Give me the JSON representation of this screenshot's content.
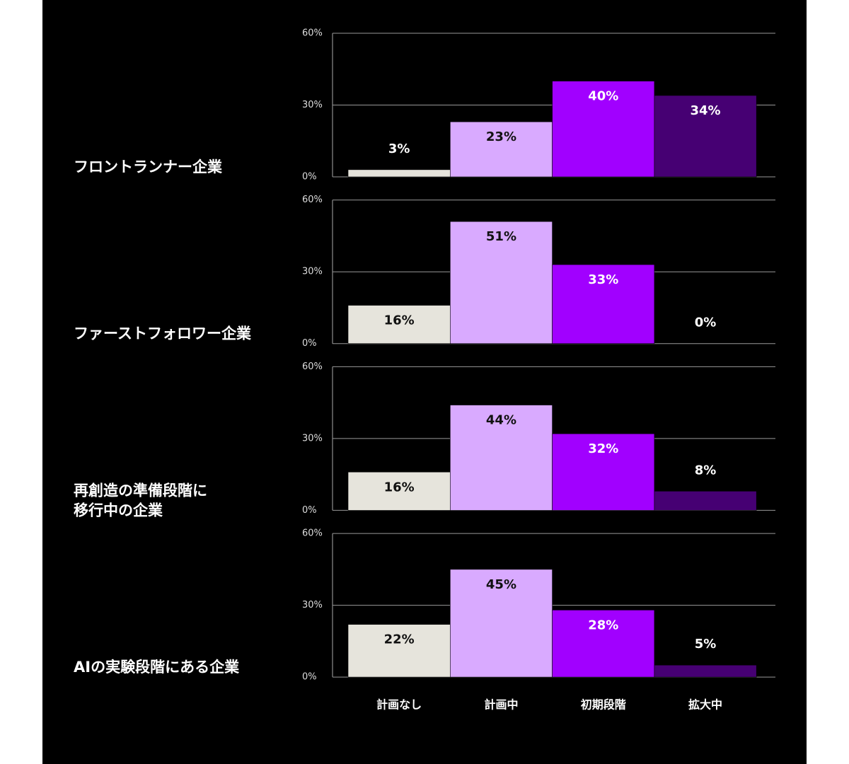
{
  "chart_data": [
    {
      "type": "bar",
      "title": [
        "フロントランナー企業"
      ],
      "values": [
        3,
        23,
        40,
        34
      ],
      "value_labels": [
        "3%",
        "23%",
        "40%",
        "34%"
      ],
      "colors": [
        "#e6e4dc",
        "#d9aaff",
        "#a100ff",
        "#460073"
      ],
      "ylim": [
        0,
        60
      ],
      "yticks": [
        {
          "value": 0,
          "label": "0%"
        },
        {
          "value": 30,
          "label": "30%"
        },
        {
          "value": 60,
          "label": "60%"
        }
      ],
      "grid": true
    },
    {
      "type": "bar",
      "title": [
        "ファーストフォロワー企業"
      ],
      "values": [
        16,
        51,
        33,
        0
      ],
      "value_labels": [
        "16%",
        "51%",
        "33%",
        "0%"
      ],
      "colors": [
        "#e6e4dc",
        "#d9aaff",
        "#a100ff",
        "#460073"
      ],
      "ylim": [
        0,
        60
      ],
      "yticks": [
        {
          "value": 0,
          "label": "0%"
        },
        {
          "value": 30,
          "label": "30%"
        },
        {
          "value": 60,
          "label": "60%"
        }
      ],
      "grid": true
    },
    {
      "type": "bar",
      "title": [
        "再創造の準備段階に",
        "移行中の企業"
      ],
      "values": [
        16,
        44,
        32,
        8
      ],
      "value_labels": [
        "16%",
        "44%",
        "32%",
        "8%"
      ],
      "colors": [
        "#e6e4dc",
        "#d9aaff",
        "#a100ff",
        "#460073"
      ],
      "ylim": [
        0,
        60
      ],
      "yticks": [
        {
          "value": 0,
          "label": "0%"
        },
        {
          "value": 30,
          "label": "30%"
        },
        {
          "value": 60,
          "label": "60%"
        }
      ],
      "grid": true
    },
    {
      "type": "bar",
      "title": [
        "AIの実験段階にある企業"
      ],
      "categories": [
        "計画なし",
        "計画中",
        "初期段階",
        "拡大中"
      ],
      "values": [
        22,
        45,
        28,
        5
      ],
      "value_labels": [
        "22%",
        "45%",
        "28%",
        "5%"
      ],
      "colors": [
        "#e6e4dc",
        "#d9aaff",
        "#a100ff",
        "#460073"
      ],
      "ylim": [
        0,
        60
      ],
      "yticks": [
        {
          "value": 0,
          "label": "0%"
        },
        {
          "value": 30,
          "label": "30%"
        },
        {
          "value": 60,
          "label": "60%"
        }
      ],
      "grid": true
    }
  ]
}
